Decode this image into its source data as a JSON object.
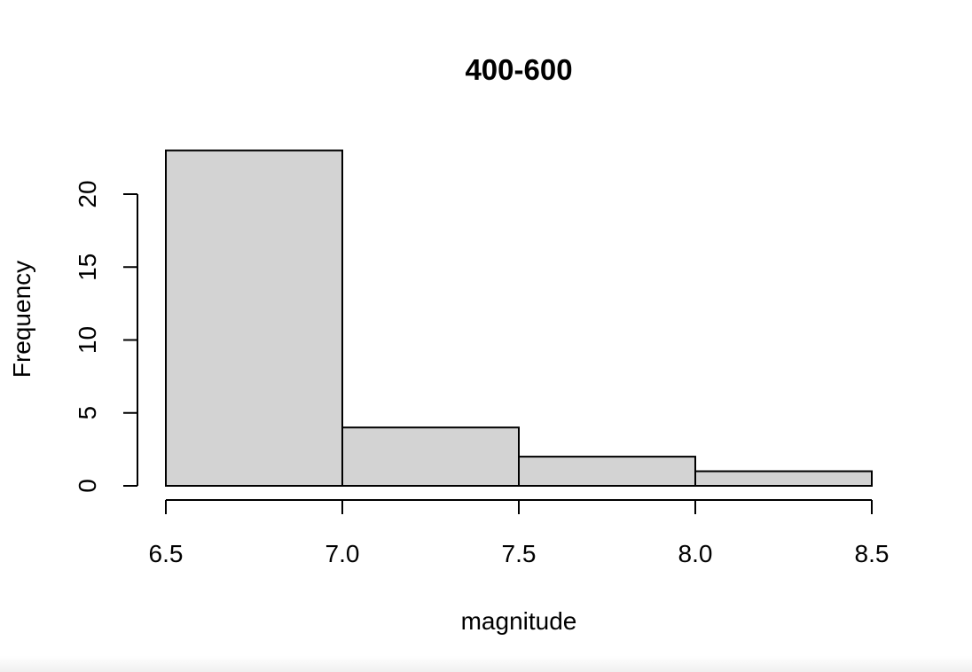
{
  "chart_data": {
    "type": "bar",
    "subtype": "histogram",
    "title": "400-600",
    "xlabel": "magnitude",
    "ylabel": "Frequency",
    "bins": [
      {
        "from": 6.5,
        "to": 7.0,
        "count": 23
      },
      {
        "from": 7.0,
        "to": 7.5,
        "count": 4
      },
      {
        "from": 7.5,
        "to": 8.0,
        "count": 2
      },
      {
        "from": 8.0,
        "to": 8.5,
        "count": 1
      }
    ],
    "xlim": [
      6.5,
      8.5
    ],
    "ylim": [
      0,
      23
    ],
    "x_ticks": [
      6.5,
      7.0,
      7.5,
      8.0,
      8.5
    ],
    "x_tick_labels": [
      "6.5",
      "7.0",
      "7.5",
      "8.0",
      "8.5"
    ],
    "y_ticks": [
      0,
      5,
      10,
      15,
      20
    ],
    "y_tick_labels": [
      "0",
      "5",
      "10",
      "15",
      "20"
    ],
    "grid": false,
    "legend": "none",
    "bar_fill": "#d3d3d3",
    "bar_stroke": "#000000"
  }
}
